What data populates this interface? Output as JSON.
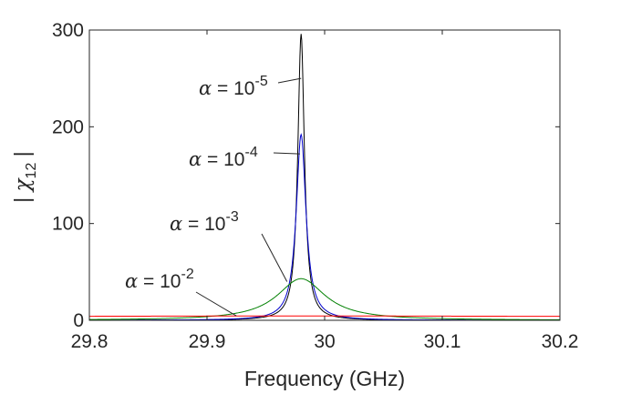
{
  "chart_data": {
    "type": "line",
    "title": "",
    "xlabel": "Frequency (GHz)",
    "ylabel": {
      "prefix": "| ",
      "symbol": "χ",
      "subscript": "12",
      "suffix": " |"
    },
    "xlim": [
      29.8,
      30.2
    ],
    "ylim": [
      0,
      300
    ],
    "x_ticks": [
      29.8,
      29.9,
      30.0,
      30.1,
      30.2
    ],
    "x_tick_labels": [
      "29.8",
      "29.9",
      "30",
      "30.1",
      "30.2"
    ],
    "y_ticks": [
      0,
      100,
      200,
      300
    ],
    "y_tick_labels": [
      "0",
      "100",
      "200",
      "300"
    ],
    "grid": false,
    "legend": "none",
    "peak_frequency": 29.98,
    "series": [
      {
        "alpha_exponent": "-5",
        "color": "#000000",
        "peak": 296,
        "half_width": 0.0034,
        "x": [
          29.8,
          29.85,
          29.9,
          29.93,
          29.95,
          29.96,
          29.97,
          29.975,
          29.98,
          29.985,
          29.99,
          30.0,
          30.01,
          30.03,
          30.05,
          30.1,
          30.15,
          30.2
        ],
        "values": [
          5.5,
          7.5,
          12.5,
          20,
          33,
          50,
          90,
          150,
          296,
          150,
          90,
          50,
          33,
          20,
          14,
          8,
          6,
          4.5
        ]
      },
      {
        "alpha_exponent": "-4",
        "color": "#0000cc",
        "peak": 192,
        "half_width": 0.005,
        "x": [
          29.8,
          29.85,
          29.9,
          29.93,
          29.95,
          29.96,
          29.97,
          29.975,
          29.98,
          29.985,
          29.99,
          30.0,
          30.01,
          30.03,
          30.05,
          30.1,
          30.15,
          30.2
        ],
        "values": [
          5.5,
          7.5,
          12.5,
          20,
          33,
          49,
          85,
          130,
          192,
          130,
          85,
          49,
          33,
          20,
          14,
          8,
          6,
          4.5
        ]
      },
      {
        "alpha_exponent": "-3",
        "color": "#008000",
        "peak": 43,
        "half_width": 0.025,
        "x": [
          29.8,
          29.85,
          29.9,
          29.93,
          29.95,
          29.96,
          29.97,
          29.98,
          29.99,
          30.0,
          30.01,
          30.03,
          30.05,
          30.1,
          30.15,
          30.2
        ],
        "values": [
          4.5,
          7,
          11,
          17,
          25,
          31,
          38,
          43,
          38,
          31,
          25,
          17,
          12.5,
          7.5,
          5.5,
          4.5
        ]
      },
      {
        "alpha_exponent": "-2",
        "color": "#ff0000",
        "peak": 4.5,
        "half_width": 0.25,
        "x": [
          29.8,
          29.9,
          29.98,
          30.05,
          30.1,
          30.2
        ],
        "values": [
          3.5,
          4.2,
          4.5,
          4.4,
          4.2,
          3.5
        ]
      }
    ],
    "annotations": [
      {
        "symbol": "α",
        "text": " = 10",
        "exponent": "-5",
        "target_series": 0,
        "target": [
          29.98,
          250
        ]
      },
      {
        "symbol": "α",
        "text": " = 10",
        "exponent": "-4",
        "target_series": 1,
        "target": [
          29.979,
          172
        ]
      },
      {
        "symbol": "α",
        "text": " = 10",
        "exponent": "-3",
        "target_series": 2,
        "target": [
          29.968,
          40
        ]
      },
      {
        "symbol": "α",
        "text": " = 10",
        "exponent": "-2",
        "target_series": 3,
        "target": [
          29.925,
          4.5
        ]
      }
    ]
  }
}
